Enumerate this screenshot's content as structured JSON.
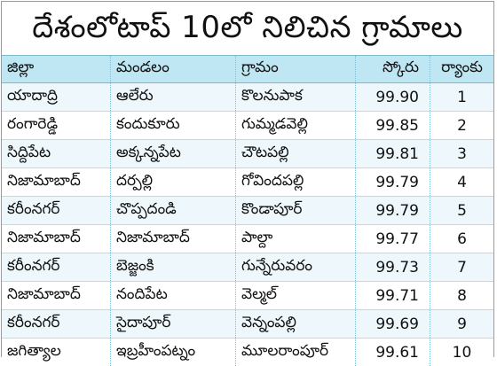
{
  "title": "దేశంలోటాప్ 10లో నిలిచిన గ్రామాలు",
  "headers": {
    "district": "జిల్లా",
    "mandal": "మండలం",
    "village": "గ్రామం",
    "score": "స్కోరు",
    "rank": "ర్యాంకు"
  },
  "rows": [
    {
      "district": "యాదాద్రి",
      "mandal": "ఆలేరు",
      "village": "కొలనుపాక",
      "score": "99.90",
      "rank": "1"
    },
    {
      "district": "రంగారెడ్డి",
      "mandal": "కందుకూరు",
      "village": "గుమ్మడవెల్లి",
      "score": "99.85",
      "rank": "2"
    },
    {
      "district": "సిద్దిపేట",
      "mandal": "అక్కన్నపేట",
      "village": "చౌటపల్లి",
      "score": "99.81",
      "rank": "3"
    },
    {
      "district": "నిజామాబాద్",
      "mandal": "దర్పల్లి",
      "village": "గోవిందపల్లి",
      "score": "99.79",
      "rank": "4"
    },
    {
      "district": "కరీంనగర్",
      "mandal": "చొప్పదండి",
      "village": "కొండాపూర్",
      "score": "99.79",
      "rank": "5"
    },
    {
      "district": "నిజామాబాద్",
      "mandal": "నిజామాబాద్",
      "village": "పాల్దా",
      "score": "99.77",
      "rank": "6"
    },
    {
      "district": "కరీంనగర్",
      "mandal": "బెజ్జంకి",
      "village": "గున్నేరువరం",
      "score": "99.73",
      "rank": "7"
    },
    {
      "district": "నిజామాబాద్",
      "mandal": "నందిపేట",
      "village": "వెల్మల్",
      "score": "99.71",
      "rank": "8"
    },
    {
      "district": "కరీంనగర్",
      "mandal": "సైదాపూర్",
      "village": "వెన్నంపల్లి",
      "score": "99.69",
      "rank": "9"
    },
    {
      "district": "జగిత్యాల",
      "mandal": "ఇబ్రహీంపట్నం",
      "village": "మూలరాంపూర్",
      "score": "99.61",
      "rank": "10"
    }
  ]
}
